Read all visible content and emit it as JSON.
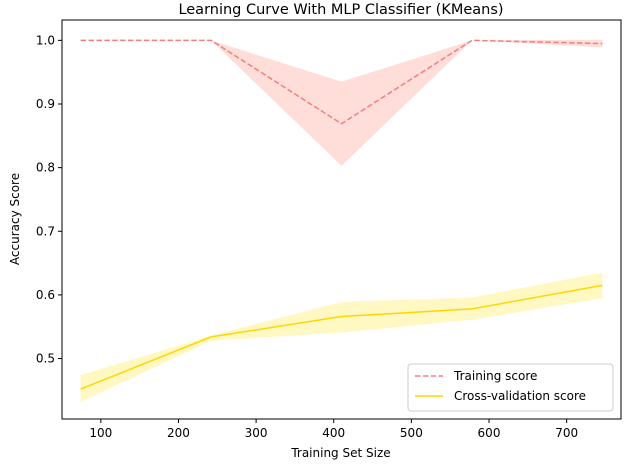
{
  "chart_data": {
    "type": "line",
    "title": "Learning Curve With MLP Classifier (KMeans)",
    "xlabel": "Training Set Size",
    "ylabel": "Accuracy Score",
    "xlim": [
      50,
      770
    ],
    "ylim": [
      0.405,
      1.032
    ],
    "x": [
      74,
      242,
      410,
      578,
      746
    ],
    "x_ticks": [
      100,
      200,
      300,
      400,
      500,
      600,
      700
    ],
    "y_ticks": [
      0.5,
      0.6,
      0.7,
      0.8,
      0.9,
      1.0
    ],
    "grid": false,
    "legend_position": "lower right",
    "series": [
      {
        "name": "Training score",
        "values": [
          1.0,
          1.0,
          0.869,
          1.0,
          0.995
        ],
        "band_lower": [
          1.0,
          1.0,
          0.803,
          1.0,
          0.989
        ],
        "band_upper": [
          1.0,
          1.0,
          0.935,
          1.0,
          1.001
        ],
        "line_color": "#f08080",
        "band_color": "#ffddd8",
        "line_style": "dashed"
      },
      {
        "name": "Cross-validation score",
        "values": [
          0.452,
          0.534,
          0.566,
          0.578,
          0.615
        ],
        "band_lower": [
          0.432,
          0.528,
          0.541,
          0.561,
          0.595
        ],
        "band_upper": [
          0.474,
          0.536,
          0.589,
          0.596,
          0.635
        ],
        "line_color": "#ffd700",
        "band_color": "#fff8c3",
        "line_style": "solid"
      }
    ]
  }
}
